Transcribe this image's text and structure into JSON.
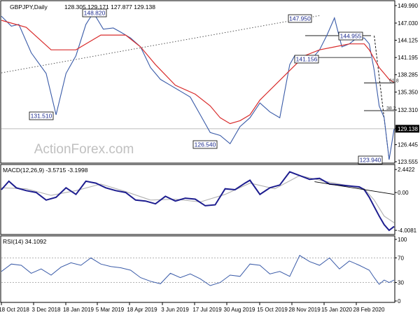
{
  "header": {
    "symbol_label": "GBPJPY,Daily",
    "ohlc": "128.305 129.171 127.877 129.138"
  },
  "watermark": "ActionForex.com",
  "chart_data": [
    {
      "type": "line",
      "panel": "price",
      "title": "GBPJPY,Daily",
      "y_ticks": [
        "149.990",
        "147.030",
        "144.125",
        "141.195",
        "138.285",
        "135.350",
        "132.310",
        "129.138",
        "126.445",
        "123.555"
      ],
      "ylim": [
        123.555,
        149.99
      ],
      "current_price": "129.138",
      "series": [
        {
          "name": "",
          "color": "#3a5ba8",
          "x": [
            0,
            4,
            7,
            12,
            18,
            22,
            26,
            30,
            34,
            37,
            41,
            45,
            48,
            52,
            56,
            60,
            64,
            68,
            72,
            76,
            80,
            84,
            88,
            92,
            96,
            100,
            104,
            108,
            112,
            116,
            118,
            122,
            125,
            128,
            131,
            134,
            137,
            140,
            143,
            146,
            148,
            150,
            152,
            154,
            156,
            158
          ],
          "y": [
            148.2,
            146.5,
            146.8,
            142.0,
            138.5,
            131.5,
            138.5,
            141.5,
            146.8,
            148.8,
            146.0,
            146.2,
            145.5,
            144.5,
            143.0,
            139.5,
            137.5,
            136.5,
            135.5,
            134.5,
            131.5,
            128.5,
            128.0,
            126.6,
            129.5,
            131.0,
            133.5,
            132.0,
            131.0,
            140.0,
            141.5,
            141.2,
            141.0,
            142.5,
            145.0,
            147.9,
            143.0,
            143.5,
            144.5,
            144.5,
            143.5,
            139.0,
            133.0,
            131.0,
            123.9,
            129.1
          ]
        },
        {
          "name": "",
          "color": "#d92c2c",
          "x": [
            0,
            10,
            20,
            30,
            40,
            50,
            56,
            62,
            70,
            78,
            84,
            88,
            92,
            96,
            100,
            104,
            110,
            116,
            122,
            128,
            134,
            140,
            146,
            148,
            150,
            152,
            154,
            156,
            158
          ],
          "y": [
            147.5,
            146.3,
            142.5,
            142.5,
            145.0,
            145.0,
            143.0,
            140.0,
            136.5,
            135.0,
            133.0,
            131.0,
            130.0,
            130.5,
            131.5,
            134.0,
            136.5,
            139.0,
            141.5,
            142.5,
            143.0,
            143.5,
            143.5,
            142.5,
            141.0,
            139.5,
            138.5,
            137.5,
            137.0
          ]
        }
      ],
      "trendline": {
        "name": "",
        "style": "dotted",
        "from": [
          0,
          138.6
        ],
        "to": [
          128,
          148.3
        ]
      },
      "annotations": [
        "148.820",
        "147.950",
        "144.955",
        "141.156",
        "131.510",
        "126.540",
        "123.940",
        "61.8",
        "38.2"
      ]
    },
    {
      "type": "line",
      "panel": "MACD",
      "title": "MACD(12,26,9) -3.5715 -3.1998",
      "y_ticks": [
        "2.4422",
        "0.00",
        "-4.0081"
      ],
      "ylim": [
        -4.0081,
        2.4422
      ],
      "series": [
        {
          "name": "",
          "color": "#1d1d8f",
          "x": [
            0,
            3,
            6,
            10,
            14,
            18,
            22,
            26,
            30,
            34,
            38,
            42,
            46,
            50,
            54,
            58,
            62,
            66,
            70,
            74,
            78,
            82,
            86,
            90,
            94,
            98,
            100,
            104,
            108,
            112,
            116,
            120,
            124,
            128,
            132,
            136,
            140,
            144,
            146,
            148,
            150,
            152,
            154,
            156,
            158
          ],
          "y": [
            0.3,
            1.2,
            0.5,
            0.2,
            0.0,
            -0.8,
            -0.5,
            0.5,
            -0.2,
            1.2,
            1.0,
            0.5,
            0.2,
            0.0,
            -0.8,
            -0.9,
            -1.2,
            -0.4,
            -0.9,
            -0.6,
            -0.7,
            -1.4,
            -1.3,
            0.4,
            0.3,
            1.0,
            1.3,
            -0.2,
            0.5,
            0.8,
            2.2,
            1.8,
            1.4,
            1.5,
            0.9,
            0.8,
            0.7,
            0.6,
            0.3,
            -0.5,
            -1.5,
            -2.5,
            -3.4,
            -4.0,
            -3.6
          ]
        },
        {
          "name": "",
          "color": "#b0b0b0",
          "x": [
            0,
            10,
            20,
            30,
            40,
            50,
            60,
            70,
            80,
            90,
            100,
            110,
            120,
            130,
            140,
            146,
            150,
            154,
            158
          ],
          "y": [
            0.5,
            0.4,
            -0.3,
            0.2,
            0.9,
            0.1,
            -0.8,
            -0.7,
            -1.0,
            -0.2,
            1.0,
            0.4,
            1.8,
            1.2,
            0.7,
            0.4,
            -0.8,
            -2.5,
            -3.2
          ]
        }
      ],
      "trendline": {
        "name": "",
        "style": "solid",
        "from": [
          126,
          1.15
        ],
        "to": [
          158,
          -0.2
        ]
      }
    },
    {
      "type": "line",
      "panel": "RSI",
      "title": "RSI(14) 34.1092",
      "y_ticks": [
        "100",
        "70",
        "30",
        "0"
      ],
      "ylim": [
        0,
        100
      ],
      "levels": [
        30,
        70
      ],
      "series": [
        {
          "name": "",
          "color": "#3a5ba8",
          "x": [
            0,
            4,
            8,
            12,
            16,
            20,
            24,
            28,
            32,
            36,
            40,
            44,
            48,
            52,
            56,
            60,
            64,
            68,
            72,
            76,
            80,
            84,
            88,
            92,
            96,
            100,
            104,
            108,
            112,
            116,
            120,
            124,
            128,
            132,
            136,
            140,
            144,
            148,
            150,
            152,
            154,
            156,
            158
          ],
          "y": [
            48,
            60,
            58,
            45,
            52,
            42,
            55,
            62,
            58,
            70,
            60,
            56,
            54,
            50,
            38,
            32,
            28,
            45,
            38,
            44,
            36,
            25,
            30,
            42,
            40,
            60,
            58,
            44,
            48,
            40,
            74,
            64,
            58,
            70,
            52,
            65,
            58,
            50,
            38,
            27,
            34,
            30,
            34
          ]
        }
      ]
    }
  ],
  "x_axis": {
    "labels": [
      "18 Oct 2018",
      "3 Dec 2018",
      "18 Jan 2019",
      "5 Mar 2019",
      "18 Apr 2019",
      "3 Jun 2019",
      "17 Jul 2019",
      "30 Aug 2019",
      "15 Oct 2019",
      "28 Nov 2019",
      "15 Jan 2020",
      "28 Feb 2020"
    ]
  }
}
